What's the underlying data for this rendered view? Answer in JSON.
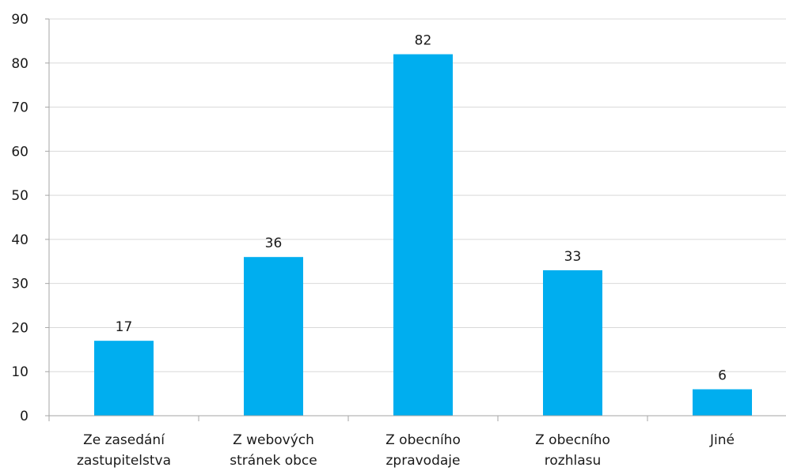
{
  "chart_data": {
    "type": "bar",
    "title": "",
    "xlabel": "",
    "ylabel": "",
    "categories": [
      [
        "Ze zasedání",
        "zastupitelstva"
      ],
      [
        "Z webových",
        "stránek obce"
      ],
      [
        "Z obecního",
        "zpravodaje"
      ],
      [
        "Z obecního",
        "rozhlasu"
      ],
      [
        "Jiné"
      ]
    ],
    "values": [
      17,
      36,
      82,
      33,
      6
    ],
    "data_labels": [
      "17",
      "36",
      "82",
      "33",
      "6"
    ],
    "ylim": [
      0,
      90
    ],
    "yticks": [
      0,
      10,
      20,
      30,
      40,
      50,
      60,
      70,
      80,
      90
    ],
    "ytick_labels": [
      "0",
      "10",
      "20",
      "30",
      "40",
      "50",
      "60",
      "70",
      "80",
      "90"
    ],
    "grid": "horizontal",
    "legend": "none",
    "colors": {
      "bar": "#00AEEF",
      "grid": "#D9D9D9",
      "axis": "#A6A6A6",
      "text": "#1A1A1A"
    }
  }
}
